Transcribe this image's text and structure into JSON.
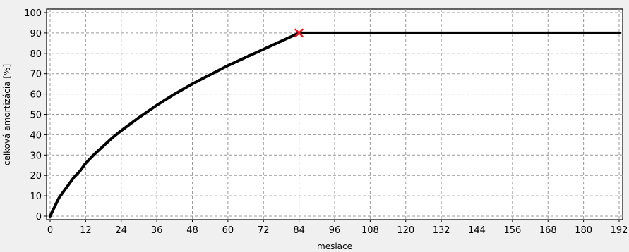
{
  "chart_data": {
    "type": "line",
    "title": "",
    "xlabel": "mesiace",
    "ylabel": "celková amortizácia [%]",
    "xlim": [
      0,
      192
    ],
    "ylim": [
      0,
      100
    ],
    "x_ticks": [
      0,
      12,
      24,
      36,
      48,
      60,
      72,
      84,
      96,
      108,
      120,
      132,
      144,
      156,
      168,
      180,
      192
    ],
    "y_ticks": [
      0,
      10,
      20,
      30,
      40,
      50,
      60,
      70,
      80,
      90,
      100
    ],
    "grid": true,
    "legend": "none",
    "series": [
      {
        "color": "#000000",
        "points": [
          [
            0,
            0
          ],
          [
            1,
            3
          ],
          [
            2,
            6
          ],
          [
            3,
            9
          ],
          [
            4,
            11
          ],
          [
            6,
            15
          ],
          [
            8,
            19
          ],
          [
            10,
            22
          ],
          [
            12,
            26
          ],
          [
            15,
            30.5
          ],
          [
            18,
            34.5
          ],
          [
            21,
            38.5
          ],
          [
            24,
            42
          ],
          [
            30,
            48.5
          ],
          [
            36,
            54.5
          ],
          [
            42,
            60
          ],
          [
            48,
            65
          ],
          [
            54,
            69.5
          ],
          [
            60,
            74
          ],
          [
            66,
            78
          ],
          [
            72,
            82
          ],
          [
            78,
            86
          ],
          [
            84,
            90
          ],
          [
            192,
            90
          ]
        ]
      }
    ],
    "markers": [
      {
        "x": 84,
        "y": 90,
        "symbol": "x",
        "color": "#e8141b"
      }
    ]
  }
}
